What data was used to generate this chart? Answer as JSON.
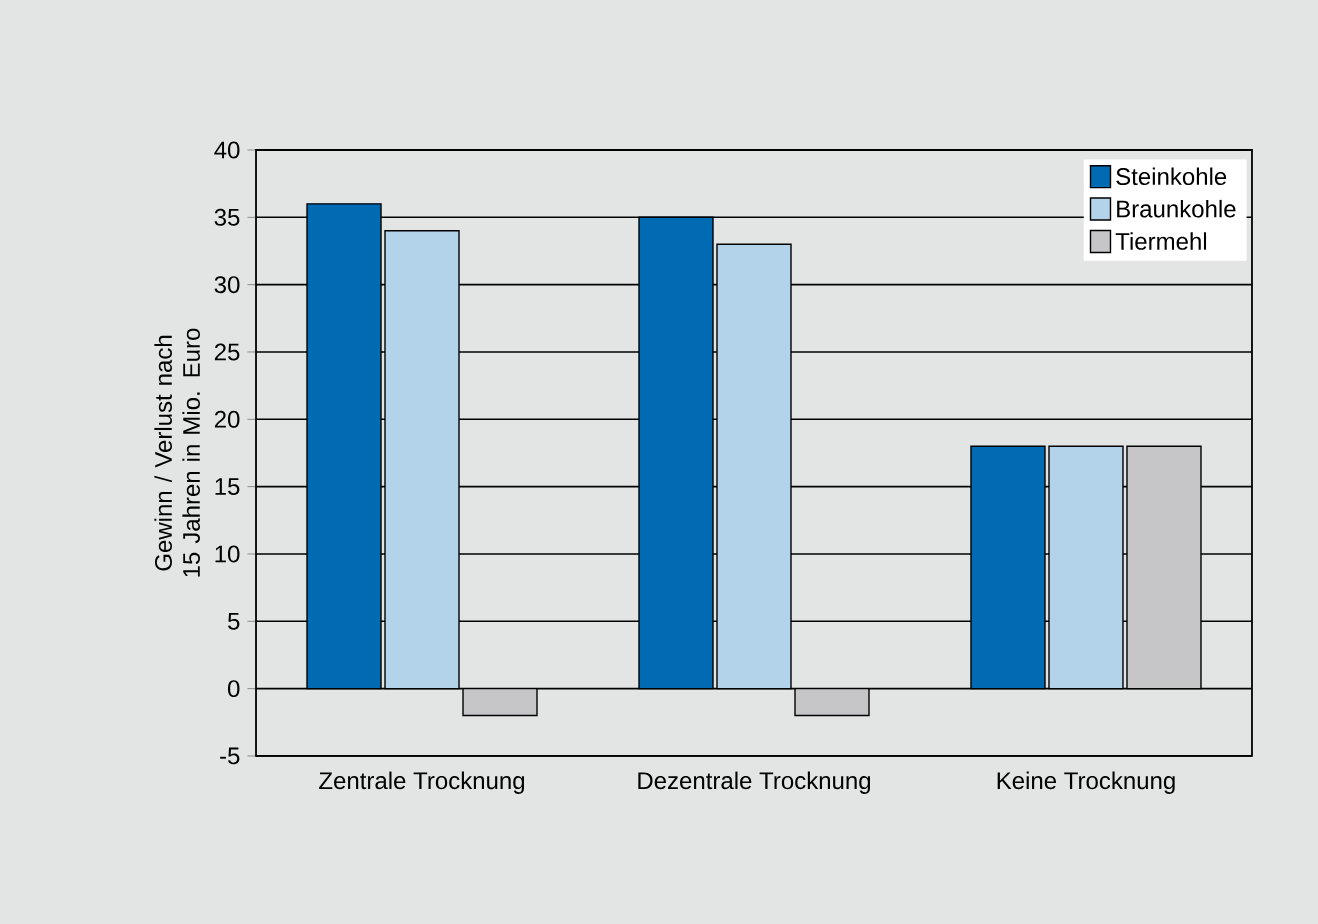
{
  "chart_data": {
    "type": "bar",
    "ylabel": "Gewinn / Verlust nach 15 Jahren in Mio. Euro",
    "categories": [
      "Zentrale Trocknung",
      "Dezentrale Trocknung",
      "Keine Trocknung"
    ],
    "series": [
      {
        "name": "Steinkohle",
        "color": "#006bb3",
        "values": [
          36,
          35,
          18
        ]
      },
      {
        "name": "Braunkohle",
        "color": "#b3d3ea",
        "values": [
          34,
          33,
          18
        ]
      },
      {
        "name": "Tiermehl",
        "color": "#c6c6c8",
        "values": [
          -2,
          -2,
          18
        ]
      }
    ],
    "ylim": [
      -5,
      40
    ],
    "yticks": [
      -5,
      0,
      5,
      10,
      15,
      20,
      25,
      30,
      35,
      40
    ],
    "grid": "y",
    "legend": "top right"
  }
}
